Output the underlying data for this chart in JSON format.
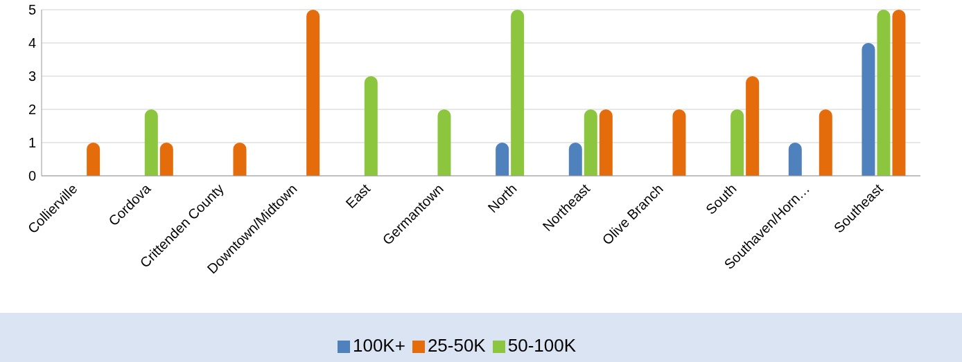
{
  "chart_data": {
    "type": "bar",
    "categories": [
      "Collierville",
      "Cordova",
      "Crittenden County",
      "Downtown/Midtown",
      "East",
      "Germantown",
      "North",
      "Northeast",
      "Olive Branch",
      "South",
      "Southaven/Horn…",
      "Southeast"
    ],
    "series": [
      {
        "name": "100K+",
        "color": "#4f81bd",
        "values": [
          0,
          0,
          0,
          0,
          0,
          0,
          1,
          1,
          0,
          0,
          1,
          4
        ]
      },
      {
        "name": "50-100K",
        "color": "#8cc63f",
        "values": [
          0,
          2,
          0,
          0,
          3,
          2,
          5,
          2,
          0,
          2,
          0,
          5
        ]
      },
      {
        "name": "25-50K",
        "color": "#e46c0a",
        "values": [
          1,
          1,
          1,
          5,
          0,
          0,
          0,
          2,
          2,
          3,
          2,
          5
        ]
      }
    ],
    "ylim": [
      0,
      5
    ],
    "yticks": [
      0,
      1,
      2,
      3,
      4,
      5
    ],
    "grid": "y",
    "legend": "bottom"
  }
}
